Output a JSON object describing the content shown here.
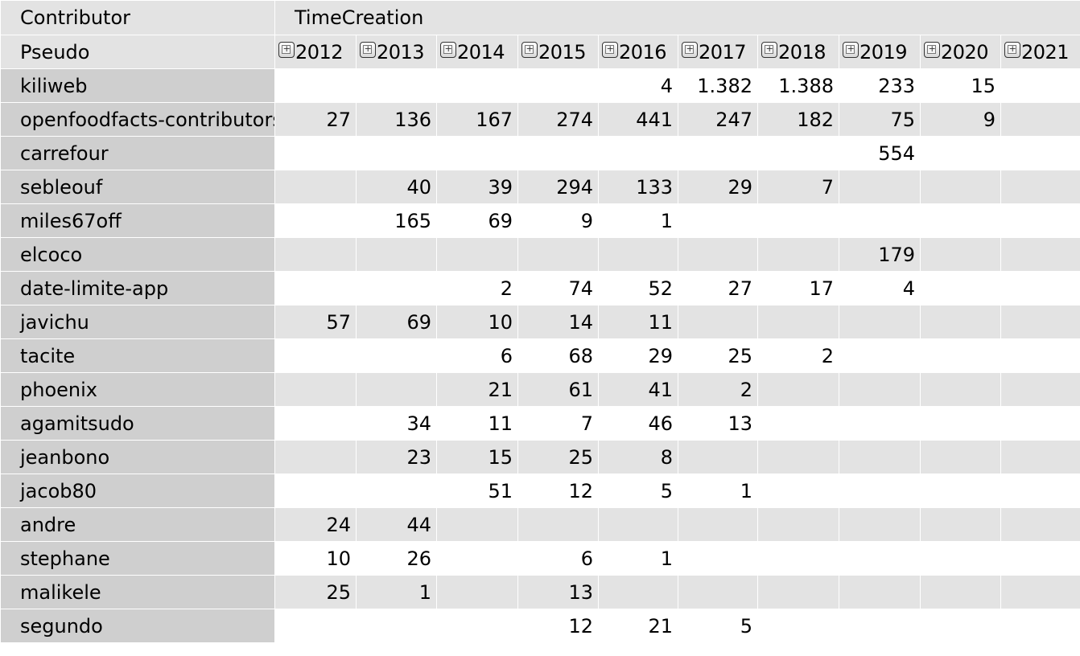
{
  "header": {
    "row_field": "Contributor",
    "column_field": "TimeCreation",
    "row_label": "Pseudo",
    "years": [
      "2012",
      "2013",
      "2014",
      "2015",
      "2016",
      "2017",
      "2018",
      "2019",
      "2020",
      "2021"
    ],
    "expand_icon": "plus-box-icon"
  },
  "rows": [
    {
      "name": "kiliweb",
      "values": [
        "",
        "",
        "",
        "",
        "4",
        "1.382",
        "1.388",
        "233",
        "15",
        ""
      ]
    },
    {
      "name": "openfoodfacts-contributors",
      "values": [
        "27",
        "136",
        "167",
        "274",
        "441",
        "247",
        "182",
        "75",
        "9",
        ""
      ]
    },
    {
      "name": "carrefour",
      "values": [
        "",
        "",
        "",
        "",
        "",
        "",
        "",
        "554",
        "",
        ""
      ]
    },
    {
      "name": "sebleouf",
      "values": [
        "",
        "40",
        "39",
        "294",
        "133",
        "29",
        "7",
        "",
        "",
        ""
      ]
    },
    {
      "name": "miles67off",
      "values": [
        "",
        "165",
        "69",
        "9",
        "1",
        "",
        "",
        "",
        "",
        ""
      ]
    },
    {
      "name": "elcoco",
      "values": [
        "",
        "",
        "",
        "",
        "",
        "",
        "",
        "179",
        "",
        ""
      ]
    },
    {
      "name": "date-limite-app",
      "values": [
        "",
        "",
        "2",
        "74",
        "52",
        "27",
        "17",
        "4",
        "",
        ""
      ]
    },
    {
      "name": "javichu",
      "values": [
        "57",
        "69",
        "10",
        "14",
        "11",
        "",
        "",
        "",
        "",
        ""
      ]
    },
    {
      "name": "tacite",
      "values": [
        "",
        "",
        "6",
        "68",
        "29",
        "25",
        "2",
        "",
        "",
        ""
      ]
    },
    {
      "name": "phoenix",
      "values": [
        "",
        "",
        "21",
        "61",
        "41",
        "2",
        "",
        "",
        "",
        ""
      ]
    },
    {
      "name": "agamitsudo",
      "values": [
        "",
        "34",
        "11",
        "7",
        "46",
        "13",
        "",
        "",
        "",
        ""
      ]
    },
    {
      "name": "jeanbono",
      "values": [
        "",
        "23",
        "15",
        "25",
        "8",
        "",
        "",
        "",
        "",
        ""
      ]
    },
    {
      "name": "jacob80",
      "values": [
        "",
        "",
        "51",
        "12",
        "5",
        "1",
        "",
        "",
        "",
        ""
      ]
    },
    {
      "name": "andre",
      "values": [
        "24",
        "44",
        "",
        "",
        "",
        "",
        "",
        "",
        "",
        ""
      ]
    },
    {
      "name": "stephane",
      "values": [
        "10",
        "26",
        "",
        "6",
        "1",
        "",
        "",
        "",
        "",
        ""
      ]
    },
    {
      "name": "malikele",
      "values": [
        "25",
        "1",
        "",
        "13",
        "",
        "",
        "",
        "",
        "",
        ""
      ]
    },
    {
      "name": "segundo",
      "values": [
        "",
        "",
        "",
        "12",
        "21",
        "5",
        "",
        "",
        "",
        ""
      ]
    }
  ],
  "colors": {
    "header_bg": "#e3e3e3",
    "row_header_bg": "#cfcfcf",
    "stripe_bg": "#e3e3e3",
    "base_bg": "#ffffff"
  }
}
